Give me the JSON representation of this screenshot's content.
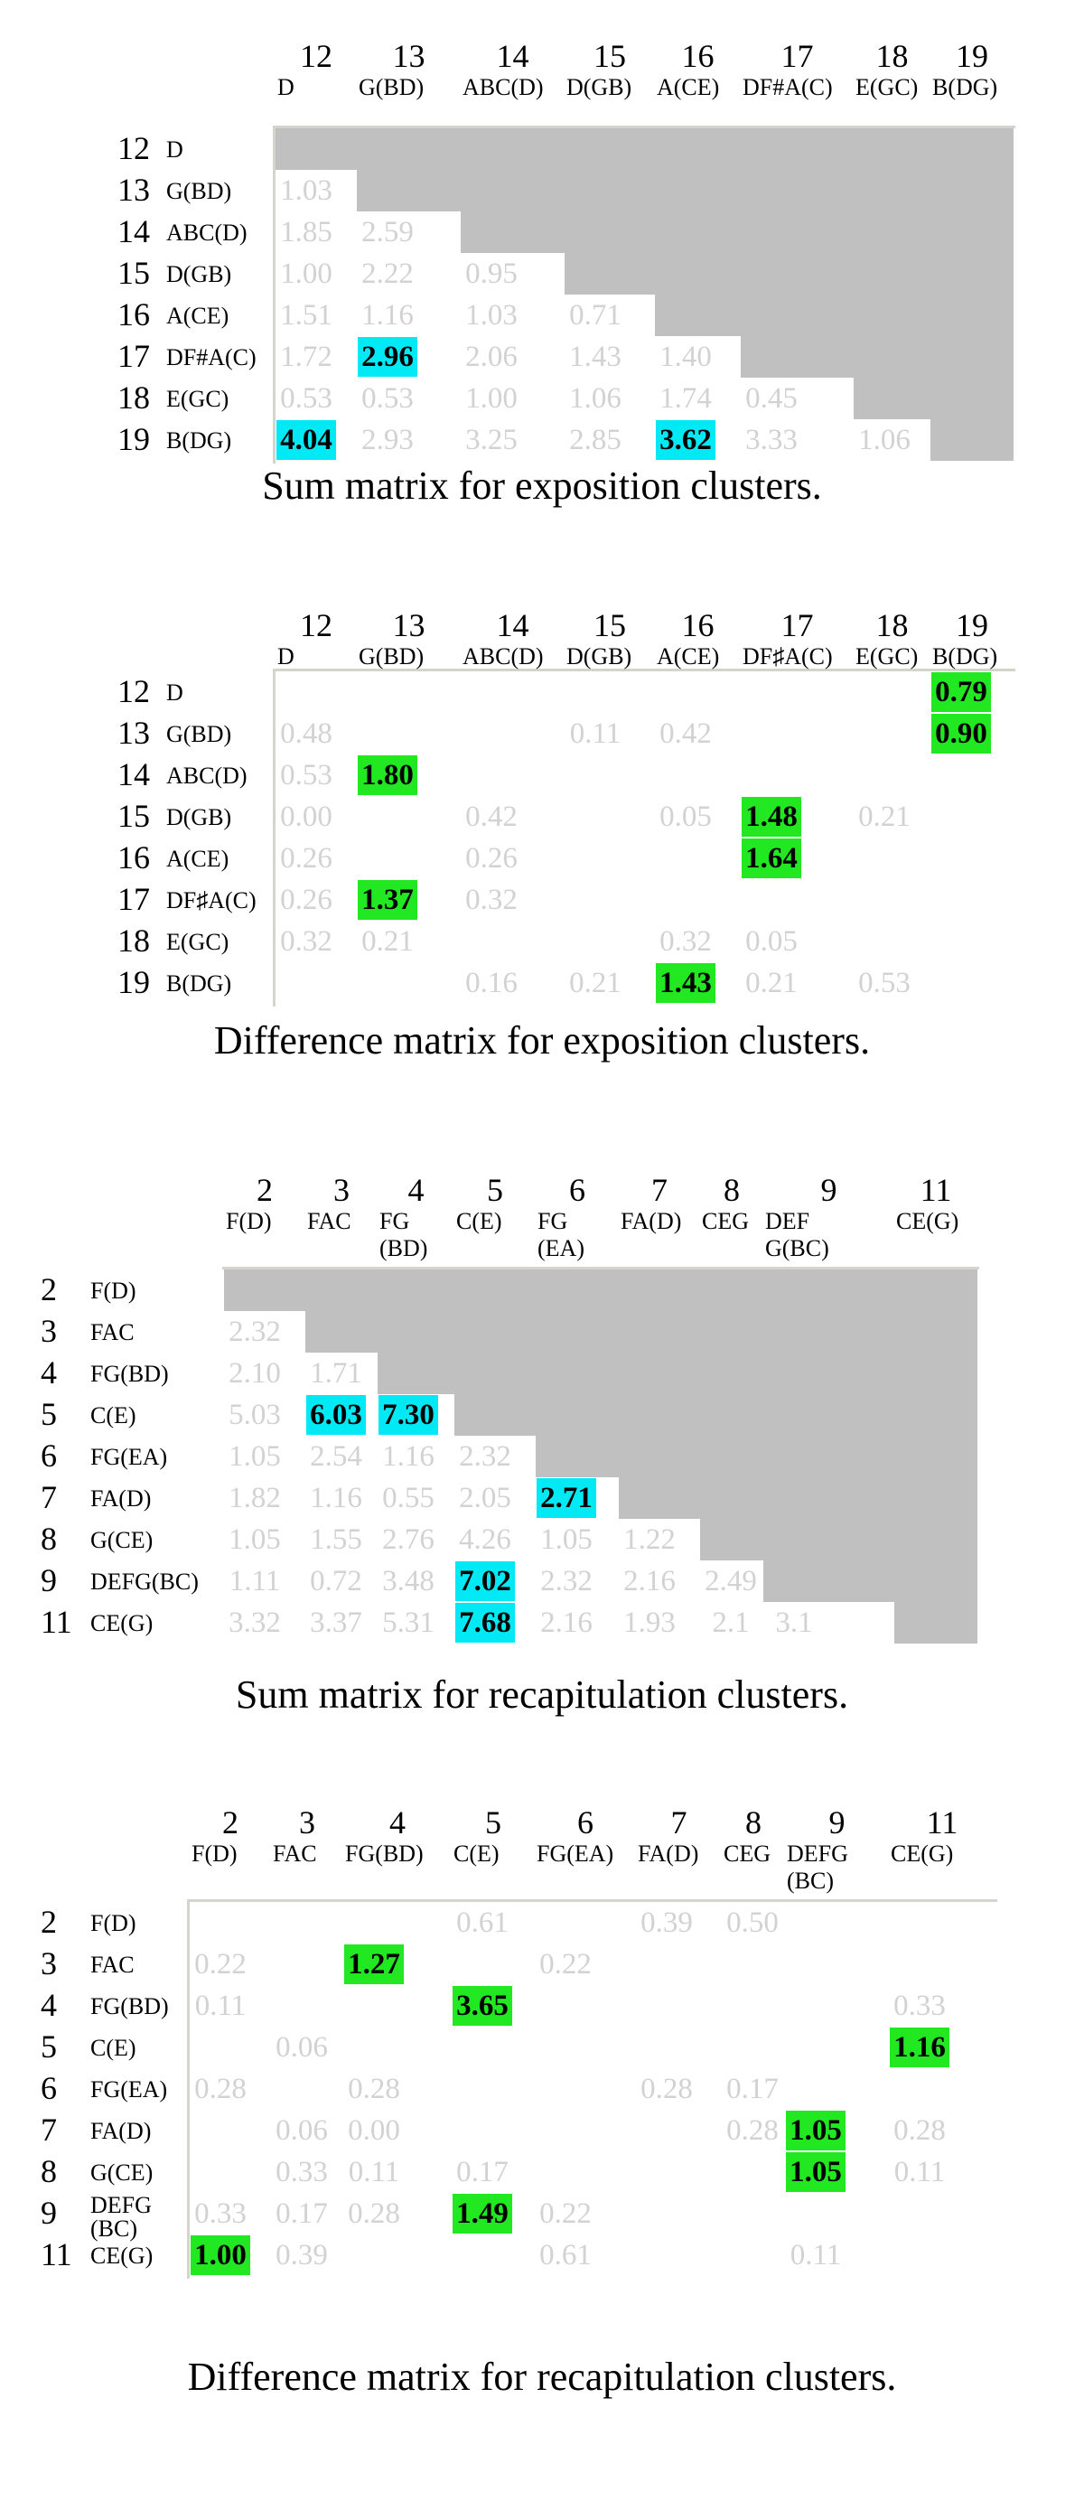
{
  "matrices": [
    {
      "id": "m1",
      "caption": "Sum matrix for exposition clusters.",
      "cols": [
        {
          "num": "12",
          "lab": [
            "D"
          ]
        },
        {
          "num": "13",
          "lab": [
            "G(BD)"
          ]
        },
        {
          "num": "14",
          "lab": [
            "ABC(D)"
          ]
        },
        {
          "num": "15",
          "lab": [
            "D(GB)"
          ]
        },
        {
          "num": "16",
          "lab": [
            "A(CE)"
          ]
        },
        {
          "num": "17",
          "lab": [
            "DF#A(C)"
          ]
        },
        {
          "num": "18",
          "lab": [
            "E(GC)"
          ]
        },
        {
          "num": "19",
          "lab": [
            "B(DG)"
          ]
        }
      ],
      "rows": [
        {
          "num": "12",
          "lab": [
            "D"
          ]
        },
        {
          "num": "13",
          "lab": [
            "G(BD)"
          ]
        },
        {
          "num": "14",
          "lab": [
            "ABC(D)"
          ]
        },
        {
          "num": "15",
          "lab": [
            "D(GB)"
          ]
        },
        {
          "num": "16",
          "lab": [
            "A(CE)"
          ]
        },
        {
          "num": "17",
          "lab": [
            "DF#A(C)"
          ]
        },
        {
          "num": "18",
          "lab": [
            "E(GC)"
          ]
        },
        {
          "num": "19",
          "lab": [
            "B(DG)"
          ]
        }
      ],
      "cells": [
        {
          "r": 1,
          "c": 0,
          "v": "1.03"
        },
        {
          "r": 2,
          "c": 0,
          "v": "1.85"
        },
        {
          "r": 2,
          "c": 1,
          "v": "2.59"
        },
        {
          "r": 3,
          "c": 0,
          "v": "1.00"
        },
        {
          "r": 3,
          "c": 1,
          "v": "2.22"
        },
        {
          "r": 3,
          "c": 2,
          "v": "0.95"
        },
        {
          "r": 4,
          "c": 0,
          "v": "1.51"
        },
        {
          "r": 4,
          "c": 1,
          "v": "1.16"
        },
        {
          "r": 4,
          "c": 2,
          "v": "1.03"
        },
        {
          "r": 4,
          "c": 3,
          "v": "0.71"
        },
        {
          "r": 5,
          "c": 0,
          "v": "1.72"
        },
        {
          "r": 5,
          "c": 1,
          "v": "2.96",
          "hl": "cyan"
        },
        {
          "r": 5,
          "c": 2,
          "v": "2.06"
        },
        {
          "r": 5,
          "c": 3,
          "v": "1.43"
        },
        {
          "r": 5,
          "c": 4,
          "v": "1.40"
        },
        {
          "r": 6,
          "c": 0,
          "v": "0.53"
        },
        {
          "r": 6,
          "c": 1,
          "v": "0.53"
        },
        {
          "r": 6,
          "c": 2,
          "v": "1.00"
        },
        {
          "r": 6,
          "c": 3,
          "v": "1.06"
        },
        {
          "r": 6,
          "c": 4,
          "v": "1.74"
        },
        {
          "r": 6,
          "c": 5,
          "v": "0.45"
        },
        {
          "r": 7,
          "c": 0,
          "v": "4.04",
          "hl": "cyan"
        },
        {
          "r": 7,
          "c": 1,
          "v": "2.93"
        },
        {
          "r": 7,
          "c": 2,
          "v": "3.25"
        },
        {
          "r": 7,
          "c": 3,
          "v": "2.85"
        },
        {
          "r": 7,
          "c": 4,
          "v": "3.62",
          "hl": "cyan"
        },
        {
          "r": 7,
          "c": 5,
          "v": "3.33"
        },
        {
          "r": 7,
          "c": 6,
          "v": "1.06"
        }
      ]
    },
    {
      "id": "m2",
      "caption": "Difference matrix for exposition clusters.",
      "cols": [
        {
          "num": "12",
          "lab": [
            "D"
          ]
        },
        {
          "num": "13",
          "lab": [
            "G(BD)"
          ]
        },
        {
          "num": "14",
          "lab": [
            "ABC(D)"
          ]
        },
        {
          "num": "15",
          "lab": [
            "D(GB)"
          ]
        },
        {
          "num": "16",
          "lab": [
            "A(CE)"
          ]
        },
        {
          "num": "17",
          "lab": [
            "DF♯A(C)"
          ]
        },
        {
          "num": "18",
          "lab": [
            "E(GC)"
          ]
        },
        {
          "num": "19",
          "lab": [
            "B(DG)"
          ]
        }
      ],
      "rows": [
        {
          "num": "12",
          "lab": [
            "D"
          ]
        },
        {
          "num": "13",
          "lab": [
            "G(BD)"
          ]
        },
        {
          "num": "14",
          "lab": [
            "ABC(D)"
          ]
        },
        {
          "num": "15",
          "lab": [
            "D(GB)"
          ]
        },
        {
          "num": "16",
          "lab": [
            "A(CE)"
          ]
        },
        {
          "num": "17",
          "lab": [
            "DF♯A(C)"
          ]
        },
        {
          "num": "18",
          "lab": [
            "E(GC)"
          ]
        },
        {
          "num": "19",
          "lab": [
            "B(DG)"
          ]
        }
      ],
      "cells": [
        {
          "r": 0,
          "c": 7,
          "v": "0.79",
          "hl": "green"
        },
        {
          "r": 1,
          "c": 0,
          "v": "0.48"
        },
        {
          "r": 1,
          "c": 3,
          "v": "0.11"
        },
        {
          "r": 1,
          "c": 4,
          "v": "0.42"
        },
        {
          "r": 1,
          "c": 7,
          "v": "0.90",
          "hl": "green"
        },
        {
          "r": 2,
          "c": 0,
          "v": "0.53"
        },
        {
          "r": 2,
          "c": 1,
          "v": "1.80",
          "hl": "green"
        },
        {
          "r": 3,
          "c": 0,
          "v": "0.00"
        },
        {
          "r": 3,
          "c": 2,
          "v": "0.42"
        },
        {
          "r": 3,
          "c": 4,
          "v": "0.05"
        },
        {
          "r": 3,
          "c": 5,
          "v": "1.48",
          "hl": "green"
        },
        {
          "r": 3,
          "c": 6,
          "v": "0.21"
        },
        {
          "r": 4,
          "c": 0,
          "v": "0.26"
        },
        {
          "r": 4,
          "c": 2,
          "v": "0.26"
        },
        {
          "r": 4,
          "c": 5,
          "v": "1.64",
          "hl": "green"
        },
        {
          "r": 5,
          "c": 0,
          "v": "0.26"
        },
        {
          "r": 5,
          "c": 1,
          "v": "1.37",
          "hl": "green"
        },
        {
          "r": 5,
          "c": 2,
          "v": "0.32"
        },
        {
          "r": 6,
          "c": 0,
          "v": "0.32"
        },
        {
          "r": 6,
          "c": 1,
          "v": "0.21"
        },
        {
          "r": 6,
          "c": 4,
          "v": "0.32"
        },
        {
          "r": 6,
          "c": 5,
          "v": "0.05"
        },
        {
          "r": 7,
          "c": 2,
          "v": "0.16"
        },
        {
          "r": 7,
          "c": 3,
          "v": "0.21"
        },
        {
          "r": 7,
          "c": 4,
          "v": "1.43",
          "hl": "green"
        },
        {
          "r": 7,
          "c": 5,
          "v": "0.21"
        },
        {
          "r": 7,
          "c": 6,
          "v": "0.53"
        }
      ]
    },
    {
      "id": "m3",
      "caption": "Sum matrix for recapitulation clusters.",
      "cols": [
        {
          "num": "2",
          "lab": [
            "F(D)"
          ]
        },
        {
          "num": "3",
          "lab": [
            "FAC"
          ]
        },
        {
          "num": "4",
          "lab": [
            "FG",
            "(BD)"
          ]
        },
        {
          "num": "5",
          "lab": [
            "C(E)"
          ]
        },
        {
          "num": "6",
          "lab": [
            "FG",
            "(EA)"
          ]
        },
        {
          "num": "7",
          "lab": [
            "FA(D)"
          ]
        },
        {
          "num": "8",
          "lab": [
            "CEG"
          ]
        },
        {
          "num": "9",
          "lab": [
            "DEF",
            "G(BC)"
          ]
        },
        {
          "num": "11",
          "lab": [
            "CE(G)"
          ]
        }
      ],
      "rows": [
        {
          "num": "2",
          "lab": [
            "F(D)"
          ]
        },
        {
          "num": "3",
          "lab": [
            "FAC"
          ]
        },
        {
          "num": "4",
          "lab": [
            "FG(BD)"
          ]
        },
        {
          "num": "5",
          "lab": [
            "C(E)"
          ]
        },
        {
          "num": "6",
          "lab": [
            "FG(EA)"
          ]
        },
        {
          "num": "7",
          "lab": [
            "FA(D)"
          ]
        },
        {
          "num": "8",
          "lab": [
            "G(CE)"
          ]
        },
        {
          "num": "9",
          "lab": [
            "DEFG(BC)"
          ]
        },
        {
          "num": "11",
          "lab": [
            "CE(G)"
          ]
        }
      ],
      "cells": [
        {
          "r": 1,
          "c": 0,
          "v": "2.32"
        },
        {
          "r": 2,
          "c": 0,
          "v": "2.10"
        },
        {
          "r": 2,
          "c": 1,
          "v": "1.71"
        },
        {
          "r": 3,
          "c": 0,
          "v": "5.03"
        },
        {
          "r": 3,
          "c": 1,
          "v": "6.03",
          "hl": "cyan"
        },
        {
          "r": 3,
          "c": 2,
          "v": "7.30",
          "hl": "cyan"
        },
        {
          "r": 4,
          "c": 0,
          "v": "1.05"
        },
        {
          "r": 4,
          "c": 1,
          "v": "2.54"
        },
        {
          "r": 4,
          "c": 2,
          "v": "1.16"
        },
        {
          "r": 4,
          "c": 3,
          "v": "2.32"
        },
        {
          "r": 5,
          "c": 0,
          "v": "1.82"
        },
        {
          "r": 5,
          "c": 1,
          "v": "1.16"
        },
        {
          "r": 5,
          "c": 2,
          "v": "0.55"
        },
        {
          "r": 5,
          "c": 3,
          "v": "2.05"
        },
        {
          "r": 5,
          "c": 4,
          "v": "2.71",
          "hl": "cyan"
        },
        {
          "r": 6,
          "c": 0,
          "v": "1.05"
        },
        {
          "r": 6,
          "c": 1,
          "v": "1.55"
        },
        {
          "r": 6,
          "c": 2,
          "v": "2.76"
        },
        {
          "r": 6,
          "c": 3,
          "v": "4.26"
        },
        {
          "r": 6,
          "c": 4,
          "v": "1.05"
        },
        {
          "r": 6,
          "c": 5,
          "v": "1.22"
        },
        {
          "r": 7,
          "c": 0,
          "v": "1.11"
        },
        {
          "r": 7,
          "c": 1,
          "v": "0.72"
        },
        {
          "r": 7,
          "c": 2,
          "v": "3.48"
        },
        {
          "r": 7,
          "c": 3,
          "v": "7.02",
          "hl": "cyan"
        },
        {
          "r": 7,
          "c": 4,
          "v": "2.32"
        },
        {
          "r": 7,
          "c": 5,
          "v": "2.16"
        },
        {
          "r": 7,
          "c": 6,
          "v": "2.49"
        },
        {
          "r": 8,
          "c": 0,
          "v": "3.32"
        },
        {
          "r": 8,
          "c": 1,
          "v": "3.37"
        },
        {
          "r": 8,
          "c": 2,
          "v": "5.31"
        },
        {
          "r": 8,
          "c": 3,
          "v": "7.68",
          "hl": "cyan"
        },
        {
          "r": 8,
          "c": 4,
          "v": "2.16"
        },
        {
          "r": 8,
          "c": 5,
          "v": "1.93"
        },
        {
          "r": 8,
          "c": 6,
          "v": "2.1"
        },
        {
          "r": 8,
          "c": 7,
          "v": "3.1"
        }
      ]
    },
    {
      "id": "m4",
      "caption": "Difference matrix for recapitulation clusters.",
      "cols": [
        {
          "num": "2",
          "lab": [
            "F(D)"
          ]
        },
        {
          "num": "3",
          "lab": [
            "FAC"
          ]
        },
        {
          "num": "4",
          "lab": [
            "FG(BD)"
          ]
        },
        {
          "num": "5",
          "lab": [
            "C(E)"
          ]
        },
        {
          "num": "6",
          "lab": [
            "FG(EA)"
          ]
        },
        {
          "num": "7",
          "lab": [
            "FA(D)"
          ]
        },
        {
          "num": "8",
          "lab": [
            "CEG"
          ]
        },
        {
          "num": "9",
          "lab": [
            "DEFG",
            "(BC)"
          ]
        },
        {
          "num": "11",
          "lab": [
            "CE(G)"
          ]
        }
      ],
      "rows": [
        {
          "num": "2",
          "lab": [
            "F(D)"
          ]
        },
        {
          "num": "3",
          "lab": [
            "FAC"
          ]
        },
        {
          "num": "4",
          "lab": [
            "FG(BD)"
          ]
        },
        {
          "num": "5",
          "lab": [
            "C(E)"
          ]
        },
        {
          "num": "6",
          "lab": [
            "FG(EA)"
          ]
        },
        {
          "num": "7",
          "lab": [
            "FA(D)"
          ]
        },
        {
          "num": "8",
          "lab": [
            "G(CE)"
          ]
        },
        {
          "num": "9",
          "lab": [
            "DEFG",
            "(BC)"
          ]
        },
        {
          "num": "11",
          "lab": [
            "CE(G)"
          ]
        }
      ],
      "cells": [
        {
          "r": 0,
          "c": 3,
          "v": "0.61"
        },
        {
          "r": 0,
          "c": 5,
          "v": "0.39"
        },
        {
          "r": 0,
          "c": 6,
          "v": "0.50"
        },
        {
          "r": 1,
          "c": 0,
          "v": "0.22"
        },
        {
          "r": 1,
          "c": 2,
          "v": "1.27",
          "hl": "green"
        },
        {
          "r": 1,
          "c": 4,
          "v": "0.22"
        },
        {
          "r": 2,
          "c": 0,
          "v": "0.11"
        },
        {
          "r": 2,
          "c": 3,
          "v": "3.65",
          "hl": "green"
        },
        {
          "r": 2,
          "c": 8,
          "v": "0.33"
        },
        {
          "r": 3,
          "c": 1,
          "v": "0.06"
        },
        {
          "r": 3,
          "c": 8,
          "v": "1.16",
          "hl": "green"
        },
        {
          "r": 4,
          "c": 0,
          "v": "0.28"
        },
        {
          "r": 4,
          "c": 2,
          "v": "0.28"
        },
        {
          "r": 4,
          "c": 5,
          "v": "0.28"
        },
        {
          "r": 4,
          "c": 6,
          "v": "0.17"
        },
        {
          "r": 5,
          "c": 1,
          "v": "0.06"
        },
        {
          "r": 5,
          "c": 2,
          "v": "0.00"
        },
        {
          "r": 5,
          "c": 6,
          "v": "0.28"
        },
        {
          "r": 5,
          "c": 7,
          "v": "1.05",
          "hl": "green"
        },
        {
          "r": 5,
          "c": 8,
          "v": "0.28"
        },
        {
          "r": 6,
          "c": 1,
          "v": "0.33"
        },
        {
          "r": 6,
          "c": 2,
          "v": "0.11"
        },
        {
          "r": 6,
          "c": 3,
          "v": "0.17"
        },
        {
          "r": 6,
          "c": 7,
          "v": "1.05",
          "hl": "green"
        },
        {
          "r": 6,
          "c": 8,
          "v": "0.11"
        },
        {
          "r": 7,
          "c": 0,
          "v": "0.33"
        },
        {
          "r": 7,
          "c": 1,
          "v": "0.17"
        },
        {
          "r": 7,
          "c": 2,
          "v": "0.28"
        },
        {
          "r": 7,
          "c": 3,
          "v": "1.49",
          "hl": "green"
        },
        {
          "r": 7,
          "c": 4,
          "v": "0.22"
        },
        {
          "r": 8,
          "c": 0,
          "v": "1.00",
          "hl": "green"
        },
        {
          "r": 8,
          "c": 1,
          "v": "0.39"
        },
        {
          "r": 8,
          "c": 4,
          "v": "0.61"
        },
        {
          "r": 8,
          "c": 7,
          "v": "0.11"
        }
      ]
    }
  ]
}
